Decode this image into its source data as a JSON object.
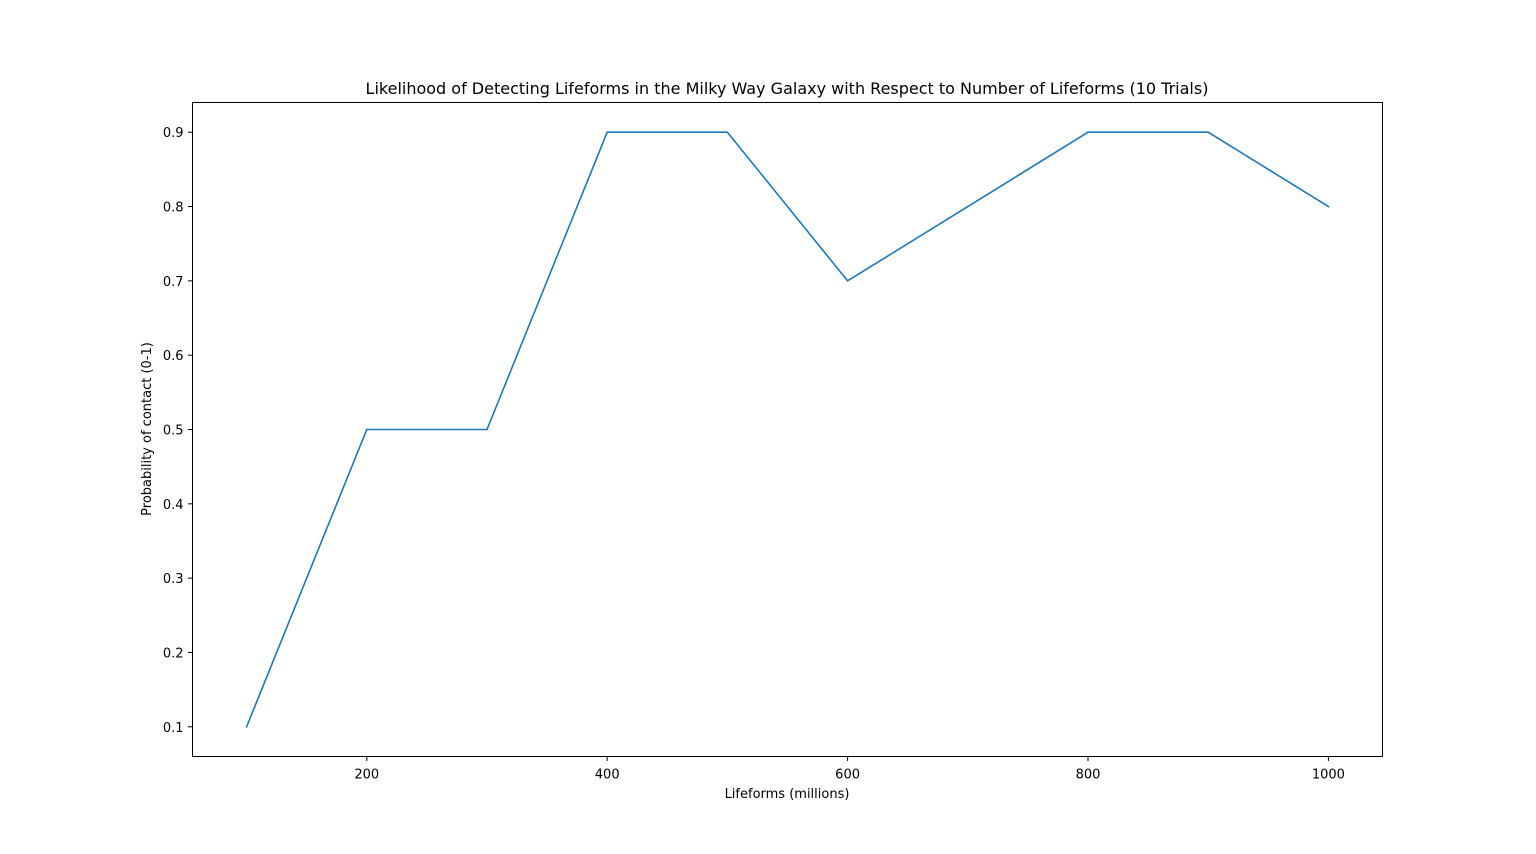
{
  "chart_data": {
    "type": "line",
    "title": "Likelihood of Detecting Lifeforms in the Milky Way Galaxy with Respect to Number of Lifeforms (10 Trials)",
    "xlabel": "Lifeforms (millions)",
    "ylabel": "Probability of contact (0-1)",
    "x": [
      100,
      200,
      300,
      400,
      500,
      600,
      700,
      800,
      900,
      1000
    ],
    "series": [
      {
        "values": [
          0.1,
          0.5,
          0.5,
          0.9,
          0.9,
          0.7,
          0.8,
          0.9,
          0.9,
          0.8
        ]
      }
    ],
    "xlim": [
      55,
      1045
    ],
    "ylim": [
      0.06,
      0.94
    ],
    "xticks": [
      200,
      400,
      600,
      800,
      1000
    ],
    "xtick_labels": [
      "200",
      "400",
      "600",
      "800",
      "1000"
    ],
    "yticks": [
      0.1,
      0.2,
      0.3,
      0.4,
      0.5,
      0.6,
      0.7,
      0.8,
      0.9
    ],
    "ytick_labels": [
      "0.1",
      "0.2",
      "0.3",
      "0.4",
      "0.5",
      "0.6",
      "0.7",
      "0.8",
      "0.9"
    ],
    "grid": false,
    "legend": "none",
    "line_color": "#1f77b4"
  }
}
